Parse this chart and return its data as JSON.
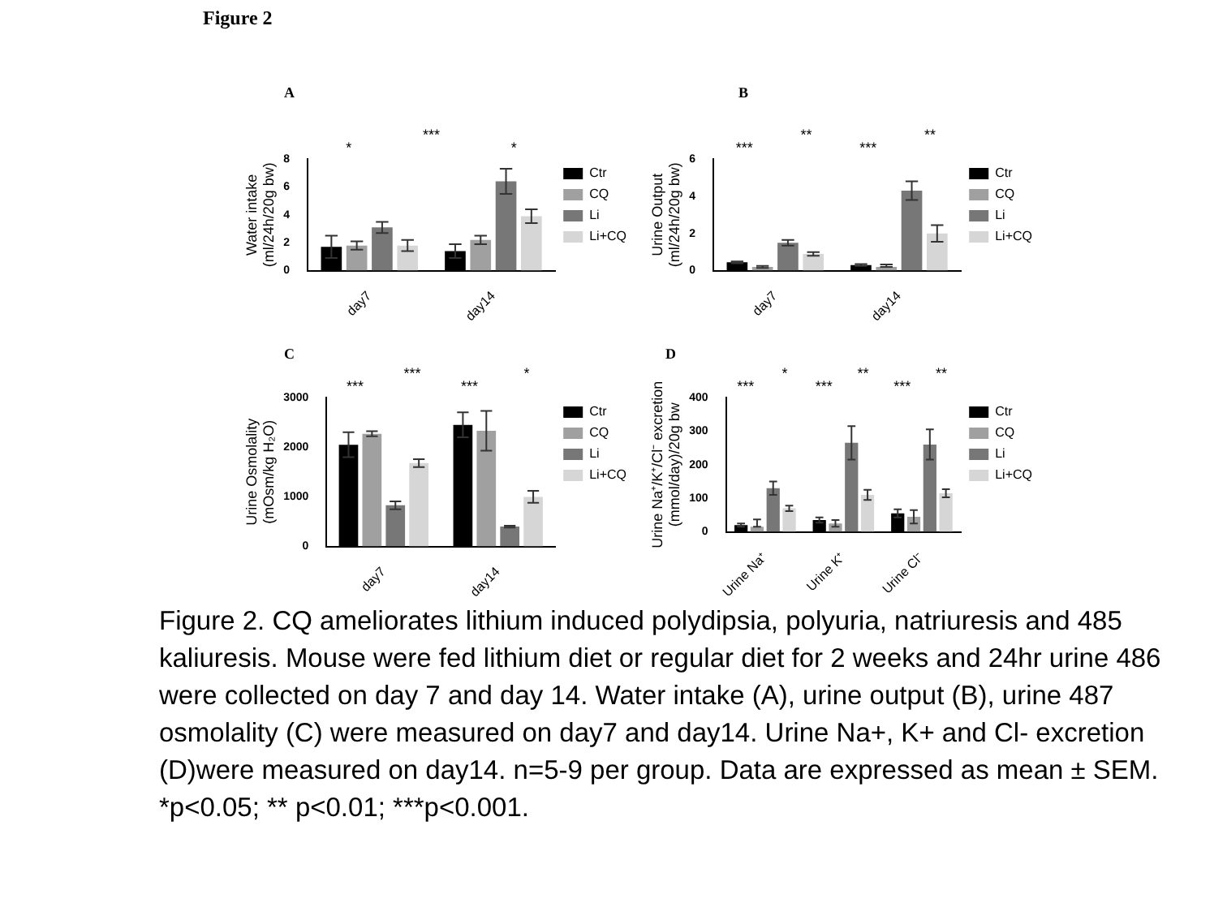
{
  "chart_data": [
    {
      "type": "bar",
      "title": "A",
      "ylabel": "Water intake (ml/24h/20g bw)",
      "categories": [
        "day7",
        "day14"
      ],
      "series": [
        {
          "name": "Ctr",
          "color": "#000000",
          "values": [
            1.7,
            1.4
          ],
          "errors": [
            0.8,
            0.5
          ]
        },
        {
          "name": "CQ",
          "color": "#a0a0a0",
          "values": [
            1.8,
            2.2
          ],
          "errors": [
            0.3,
            0.3
          ]
        },
        {
          "name": "Li",
          "color": "#777777",
          "values": [
            3.1,
            6.4
          ],
          "errors": [
            0.4,
            0.9
          ]
        },
        {
          "name": "Li+CQ",
          "color": "#d6d6d6",
          "values": [
            1.8,
            3.9
          ],
          "errors": [
            0.4,
            0.5
          ]
        }
      ],
      "ylim": [
        0,
        8
      ],
      "yticks": [
        0,
        2,
        4,
        6,
        8
      ],
      "grid": false,
      "legend": "right",
      "annotations": [
        "Figure 2",
        "Figure 2. CQ ameliorates lithium induced polydipsia, polyuria, natriuresis and 485 kaliuresis. Mouse were fed lithium diet or regular diet for 2 weeks and 24hr urine 486 were collected on day 7 and day 14. Water intake (A), urine output (B), urine 487 osmolality (C) were measured on day7 and day14. Urine Na+, K+ and Cl- excretion (D)were measured on day14. n=5-9 per group. Data are expressed as mean ± SEM.  *p<0.05; ** p<0.01; ***p<0.001.",
        "*",
        "***",
        "*"
      ]
    },
    {
      "type": "bar",
      "title": "B",
      "ylabel": "Urine Output (ml/24h/20g bw)",
      "categories": [
        "day7",
        "day14"
      ],
      "series": [
        {
          "name": "Ctr",
          "color": "#000000",
          "values": [
            0.45,
            0.3
          ],
          "errors": [
            0.05,
            0.05
          ]
        },
        {
          "name": "CQ",
          "color": "#a0a0a0",
          "values": [
            0.2,
            0.2
          ],
          "errors": [
            0.05,
            [
              0.2,
              0.33
            ]
          ]
        },
        {
          "name": "Li",
          "color": "#777777",
          "values": [
            1.5,
            4.3
          ],
          "errors": [
            0.15,
            0.5
          ]
        },
        {
          "name": "Li+CQ",
          "color": "#d6d6d6",
          "values": [
            0.9,
            2.0
          ],
          "errors": [
            0.1,
            0.45
          ]
        }
      ],
      "ylim": [
        0,
        6
      ],
      "yticks": [
        0,
        2,
        4,
        6
      ],
      "grid": false,
      "legend": "right",
      "annotations": [
        "***",
        "**",
        "***",
        "**"
      ]
    },
    {
      "type": "bar",
      "title": "C",
      "ylabel": "Urine Osmolality (mOsm/kg H₂O)",
      "categories": [
        "day7",
        "day14"
      ],
      "series": [
        {
          "name": "Ctr",
          "color": "#000000",
          "values": [
            2050,
            2450
          ],
          "errors": [
            250,
            250
          ]
        },
        {
          "name": "CQ",
          "color": "#a0a0a0",
          "values": [
            2270,
            2330
          ],
          "errors": [
            50,
            400
          ]
        },
        {
          "name": "Li",
          "color": "#777777",
          "values": [
            830,
            400
          ],
          "errors": [
            80,
            20
          ]
        },
        {
          "name": "Li+CQ",
          "color": "#d6d6d6",
          "values": [
            1680,
            1000
          ],
          "errors": [
            80,
            120
          ]
        }
      ],
      "ylim": [
        0,
        3000
      ],
      "yticks": [
        0,
        1000,
        2000,
        3000
      ],
      "grid": false,
      "legend": "right",
      "annotations": [
        "***",
        "***",
        "***",
        "*"
      ]
    },
    {
      "type": "bar",
      "title": "D",
      "ylabel": "Urine Na⁺/K⁺/Cl⁻ excretion (mmol/day)/20g bw",
      "categories": [
        "Urine Na⁺",
        "Urine K⁺",
        "Urine Cl⁻"
      ],
      "series": [
        {
          "name": "Ctr",
          "color": "#000000",
          "values": [
            20,
            35,
            55
          ],
          "errors": [
            5,
            8,
            12
          ]
        },
        {
          "name": "CQ",
          "color": "#a0a0a0",
          "values": [
            15,
            25,
            45
          ],
          "errors": [
            [
              15,
              37
            ],
            10,
            20
          ]
        },
        {
          "name": "Li",
          "color": "#777777",
          "values": [
            130,
            265,
            260
          ],
          "errors": [
            20,
            50,
            45
          ]
        },
        {
          "name": "Li+CQ",
          "color": "#d6d6d6",
          "values": [
            70,
            110,
            115
          ],
          "errors": [
            8,
            15,
            12
          ]
        }
      ],
      "ylim": [
        0,
        400
      ],
      "yticks": [
        0,
        100,
        200,
        300,
        400
      ],
      "grid": false,
      "legend": "right",
      "annotations": [
        "***",
        "*",
        "***",
        "**",
        "***",
        "**"
      ]
    }
  ]
}
